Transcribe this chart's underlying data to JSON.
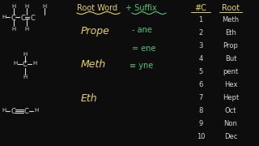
{
  "bg_color": "#0d0d0d",
  "yellow": "#e8d060",
  "green": "#50c878",
  "white": "#d8d8d8",
  "root_word": "Root Word",
  "suffix": "+ Suffix",
  "hash_c": "#C",
  "root_header": "Root",
  "prope": "Prope",
  "meth_label": "Meth",
  "eth_label": "Eth",
  "ane": "- ane",
  "ene": "= ene",
  "yne": "≡ yne",
  "numbers": [
    1,
    2,
    3,
    4,
    5,
    6,
    7,
    8,
    9,
    10
  ],
  "roots": [
    "Meth",
    "Eth",
    "Prop",
    "But",
    "pent",
    "Hex",
    "Hept",
    "Oct",
    "Non",
    "Dec"
  ]
}
